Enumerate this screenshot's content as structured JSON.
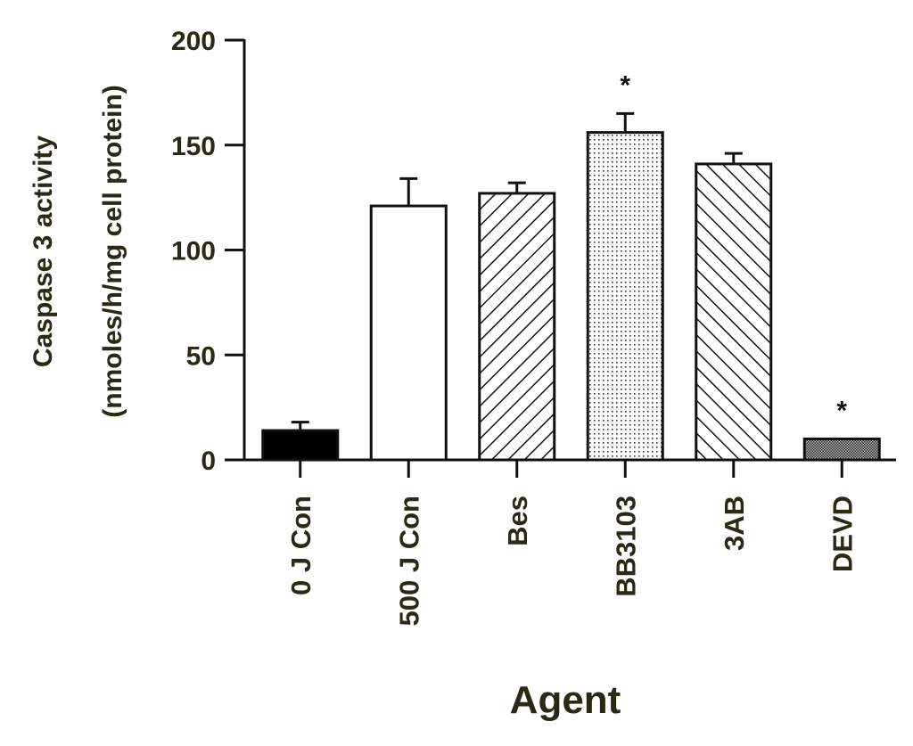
{
  "chart_data": {
    "type": "bar",
    "title": "",
    "xlabel": "Agent",
    "ylabel": [
      "Caspase 3 activity",
      "(nmoles/h/mg cell protein)"
    ],
    "ylim": [
      0,
      200
    ],
    "yticks": [
      "0",
      "50",
      "100",
      "150",
      "200"
    ],
    "categories": [
      "0 J Con",
      "500 J Con",
      "Bes",
      "BB3103",
      "3AB",
      "DEVD"
    ],
    "values": [
      14,
      121,
      127,
      156,
      141,
      10
    ],
    "errors": [
      4,
      13,
      5,
      9,
      5,
      0
    ],
    "fills": [
      "solid-black",
      "white",
      "hatch-backslash",
      "dots",
      "hatch-slash",
      "dense-dots"
    ],
    "significance": [
      "",
      "",
      "",
      "*",
      "",
      "*"
    ],
    "grid": false,
    "legend": "none"
  }
}
